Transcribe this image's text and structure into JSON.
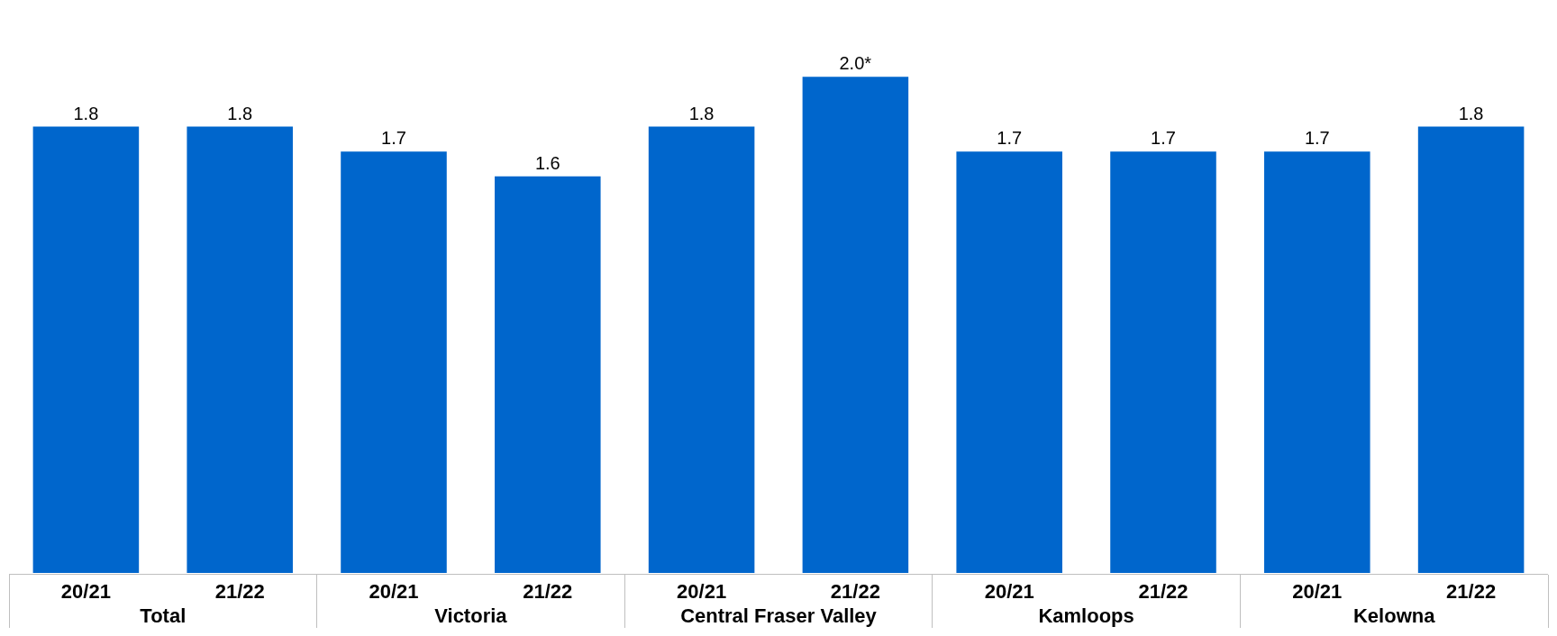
{
  "chart_data": {
    "type": "bar",
    "categories": [
      "20/21",
      "21/22",
      "20/21",
      "21/22",
      "20/21",
      "21/22",
      "20/21",
      "21/22",
      "20/21",
      "21/22"
    ],
    "values": [
      1.8,
      1.8,
      1.7,
      1.6,
      1.8,
      2.0,
      1.7,
      1.7,
      1.7,
      1.8
    ],
    "value_labels": [
      "1.8",
      "1.8",
      "1.7",
      "1.6",
      "1.8",
      "2.0*",
      "1.7",
      "1.7",
      "1.7",
      "1.8"
    ],
    "color": "#0066cc",
    "annotations": [
      "Total",
      "Victoria",
      "Central Fraser Valley",
      "Kamloops",
      "Kelowna"
    ]
  }
}
